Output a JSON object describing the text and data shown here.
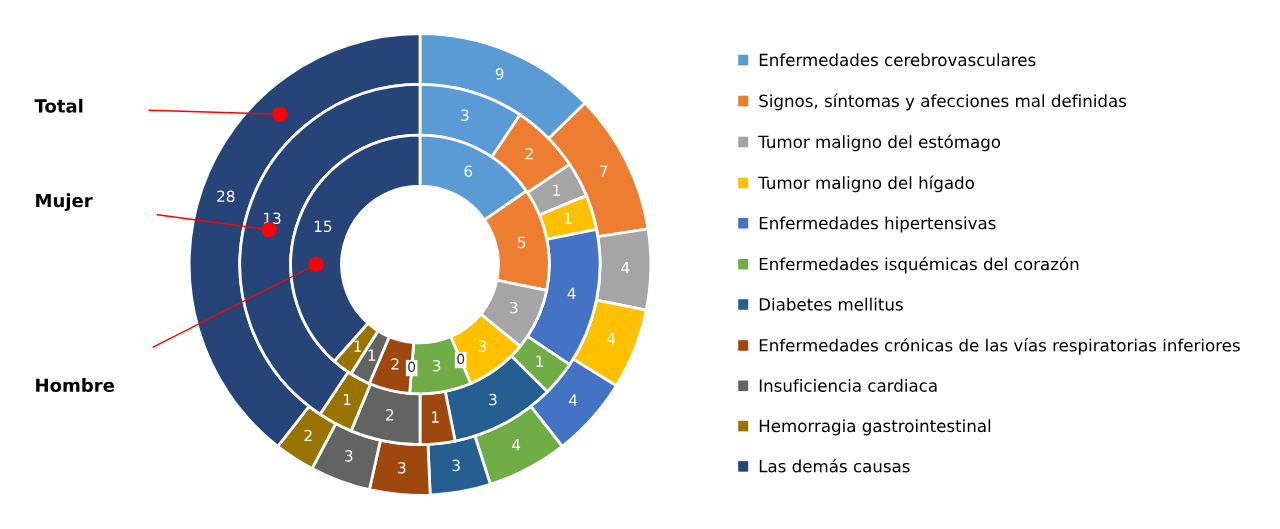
{
  "chart_data": {
    "type": "donut",
    "categories": [
      "Enfermedades cerebrovasculares",
      "Signos, síntomas y afecciones mal definidas",
      "Tumor maligno del estómago",
      "Tumor maligno del hígado",
      "Enfermedades hipertensivas",
      "Enfermedades isquémicas del corazón",
      "Diabetes mellitus",
      "Enfermedades crónicas de las vías respiratorias inferiores",
      "Insuficiencia cardiaca",
      "Hemorragia gastrointestinal",
      "Las demás causas"
    ],
    "colors": [
      "#5b9bd5",
      "#ed7d31",
      "#a5a5a5",
      "#ffc000",
      "#4472c4",
      "#70ad47",
      "#255e91",
      "#9e480e",
      "#636363",
      "#997300",
      "#264478"
    ],
    "series": [
      {
        "values": [
          9,
          7,
          4,
          4,
          4,
          4,
          3,
          3,
          3,
          2,
          28
        ],
        "value_labels": [
          "9",
          "7",
          "4",
          "4",
          "4",
          "4",
          "3",
          "3",
          "3",
          "2",
          "28"
        ]
      },
      {
        "values": [
          3,
          2,
          1,
          1,
          4,
          1,
          3,
          1,
          2,
          1,
          13
        ],
        "value_labels": [
          "3",
          "2",
          "1",
          "1",
          "4",
          "1",
          "3",
          "1",
          "2",
          "1",
          "13"
        ]
      },
      {
        "values": [
          6,
          5,
          3,
          3,
          0,
          3,
          0,
          2,
          1,
          1,
          15
        ],
        "value_labels": [
          "6",
          "5",
          "3",
          "3",
          "0",
          "3",
          "0",
          "2",
          "1",
          "1",
          "15"
        ]
      }
    ],
    "annotations": [
      "Total",
      "Mujer",
      "Hombre"
    ],
    "legend": "right"
  }
}
